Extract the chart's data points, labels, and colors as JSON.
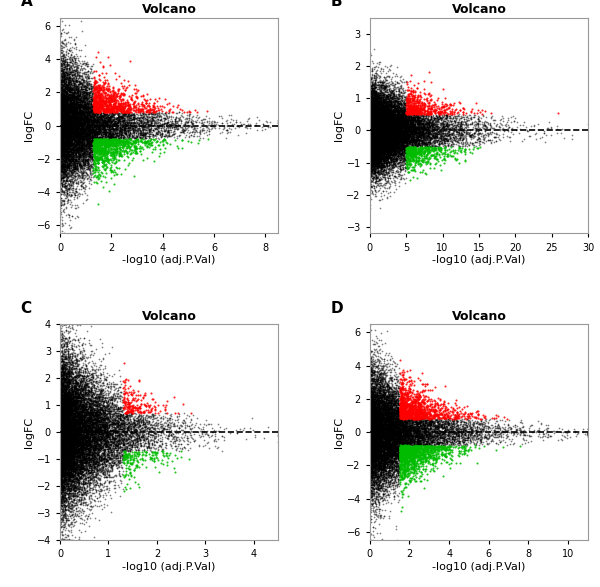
{
  "panels": [
    {
      "label": "A",
      "title": "Volcano",
      "xlabel": "-log10 (adj.P.Val)",
      "ylabel": "logFC",
      "xlim": [
        0,
        8.5
      ],
      "ylim": [
        -6.5,
        6.5
      ],
      "xticks": [
        0,
        2,
        4,
        6,
        8
      ],
      "yticks": [
        -6,
        -4,
        -2,
        0,
        2,
        4,
        6
      ],
      "n_total": 15000,
      "x_scale": 1.2,
      "y_scale_base": 2.0,
      "y_decay": 0.35,
      "y_min_scale": 0.05,
      "pval_thresh": 1.3,
      "fc_thresh_up": 0.8,
      "fc_thresh_down": -0.8,
      "seed": 42
    },
    {
      "label": "B",
      "title": "Volcano",
      "xlabel": "-log10 (adj.P.Val)",
      "ylabel": "logFC",
      "xlim": [
        0,
        30
      ],
      "ylim": [
        -3.2,
        3.5
      ],
      "xticks": [
        0,
        5,
        10,
        15,
        20,
        25,
        30
      ],
      "yticks": [
        -3,
        -2,
        -1,
        0,
        1,
        2,
        3
      ],
      "n_total": 18000,
      "x_scale": 3.5,
      "y_scale_base": 0.7,
      "y_decay": 0.06,
      "y_min_scale": 0.02,
      "pval_thresh": 5.0,
      "fc_thresh_up": 0.5,
      "fc_thresh_down": -0.5,
      "seed": 123
    },
    {
      "label": "C",
      "title": "Volcano",
      "xlabel": "-log10 (adj.P.Val)",
      "ylabel": "logFC",
      "xlim": [
        0,
        4.5
      ],
      "ylim": [
        -4.0,
        4.0
      ],
      "xticks": [
        0,
        1,
        2,
        3,
        4
      ],
      "yticks": [
        -4,
        -3,
        -2,
        -1,
        0,
        1,
        2,
        3,
        4
      ],
      "n_total": 18000,
      "x_scale": 0.55,
      "y_scale_base": 1.5,
      "y_decay": 0.6,
      "y_min_scale": 0.05,
      "pval_thresh": 1.3,
      "fc_thresh_up": 0.7,
      "fc_thresh_down": -0.7,
      "seed": 7
    },
    {
      "label": "D",
      "title": "Volcano",
      "xlabel": "-log10 (adj.P.Val)",
      "ylabel": "logFC",
      "xlim": [
        0,
        11
      ],
      "ylim": [
        -6.5,
        6.5
      ],
      "xticks": [
        0,
        2,
        4,
        6,
        8,
        10
      ],
      "yticks": [
        -6,
        -4,
        -2,
        0,
        2,
        4,
        6
      ],
      "n_total": 16000,
      "x_scale": 1.5,
      "y_scale_base": 2.0,
      "y_decay": 0.28,
      "y_min_scale": 0.04,
      "pval_thresh": 1.5,
      "fc_thresh_up": 0.8,
      "fc_thresh_down": -0.8,
      "seed": 99
    }
  ],
  "point_size": 1.5,
  "black_color": "#000000",
  "red_color": "#FF0000",
  "green_color": "#00BB00",
  "dashed_line_color": "#000000",
  "bg_color": "#FFFFFF",
  "title_fontsize": 9,
  "label_fontsize": 8,
  "tick_fontsize": 7
}
